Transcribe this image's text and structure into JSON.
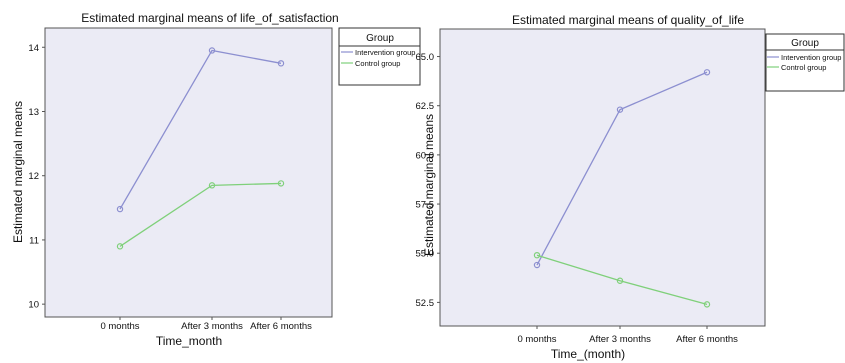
{
  "chart_data": [
    {
      "type": "line",
      "title": "Estimated marginal means of life_of_satisfaction",
      "xlabel": "Time_month",
      "ylabel": "Estimated marginal means",
      "categories": [
        "0 months",
        "After 3 months",
        "After 6 months"
      ],
      "yticks": [
        "10",
        "11",
        "12",
        "13",
        "14"
      ],
      "ylim": [
        9.8,
        14.3
      ],
      "legend_title": "Group",
      "legend_placement": "top-right",
      "grid": false,
      "series": [
        {
          "name": "Intervention group",
          "color": "#8c8fd0",
          "values": [
            11.48,
            13.95,
            13.75
          ]
        },
        {
          "name": "Control group",
          "color": "#7fd07a",
          "values": [
            10.9,
            11.85,
            11.88
          ]
        }
      ]
    },
    {
      "type": "line",
      "title": "Estimated marginal means of quality_of_life",
      "xlabel": "Time_(month)",
      "ylabel": "Estimated marginal means",
      "categories": [
        "0 months",
        "After 3 months",
        "After 6 months"
      ],
      "yticks": [
        "52.5",
        "55.0",
        "57.5",
        "60.0",
        "62.5",
        "65.0"
      ],
      "ylim": [
        51.3,
        66.4
      ],
      "legend_title": "Group",
      "legend_placement": "top-right",
      "grid": false,
      "series": [
        {
          "name": "Intervention group",
          "color": "#8c8fd0",
          "values": [
            54.4,
            62.3,
            64.2
          ]
        },
        {
          "name": "Control group",
          "color": "#7fd07a",
          "values": [
            54.9,
            53.6,
            52.4
          ]
        }
      ]
    }
  ]
}
